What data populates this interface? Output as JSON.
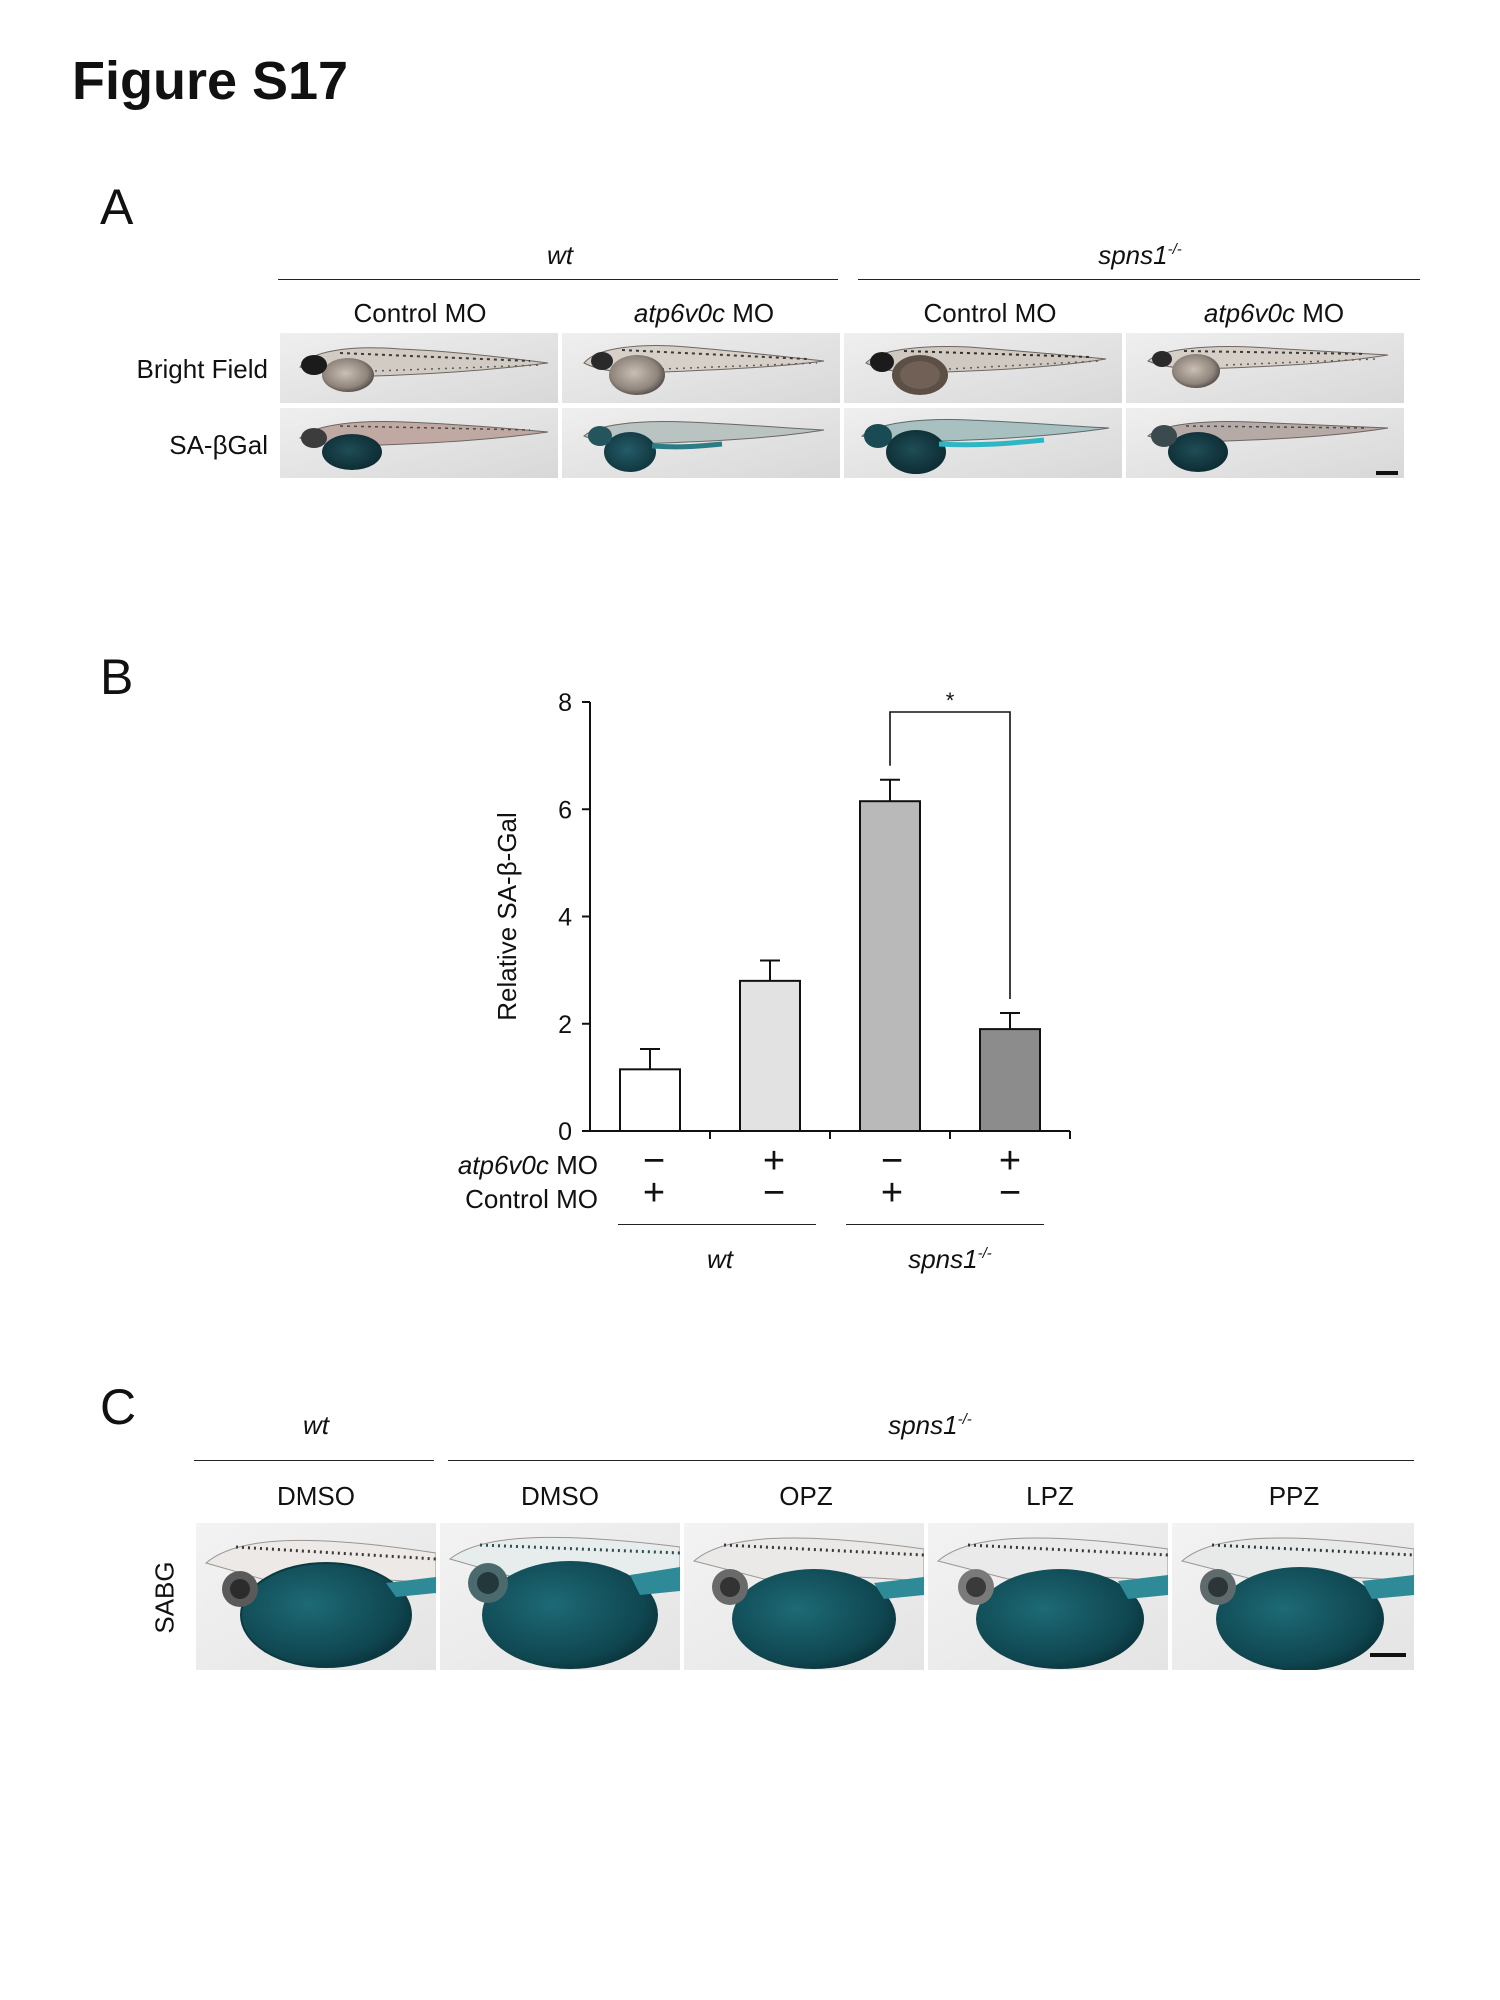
{
  "figure_title": "Figure S17",
  "panel_a": {
    "label": "A",
    "groups": [
      {
        "name": "wt",
        "superscript": ""
      },
      {
        "name": "spns1",
        "superscript": "-/-"
      }
    ],
    "columns": [
      {
        "prefix": "",
        "text": "Control MO"
      },
      {
        "prefix": "atp6v0c",
        "text": " MO"
      },
      {
        "prefix": "",
        "text": "Control MO"
      },
      {
        "prefix": "atp6v0c",
        "text": " MO"
      }
    ],
    "rows": [
      "Bright Field",
      "SA-βGal"
    ]
  },
  "panel_b": {
    "label": "B",
    "ylabel": "Relative SA-β-Gal",
    "significance": "*",
    "row_labels": [
      {
        "prefix": "atp6v0c",
        "text": " MO"
      },
      {
        "prefix": "",
        "text": "Control MO"
      }
    ],
    "atp6v0c_signs": [
      "−",
      "+",
      "−",
      "+"
    ],
    "control_signs": [
      "+",
      "−",
      "+",
      "−"
    ],
    "groups": [
      {
        "name": "wt",
        "superscript": ""
      },
      {
        "name": "spns1",
        "superscript": "-/-"
      }
    ]
  },
  "chart_data": {
    "type": "bar",
    "categories": [
      "wt Control MO",
      "wt atp6v0c MO",
      "spns1-/- Control MO",
      "spns1-/- atp6v0c MO"
    ],
    "values": [
      1.15,
      2.8,
      6.15,
      1.9
    ],
    "errors": [
      0.38,
      0.38,
      0.4,
      0.3
    ],
    "colors": [
      "#ffffff",
      "#e2e2e2",
      "#b9b9b9",
      "#8c8c8c"
    ],
    "ylabel": "Relative SA-β-Gal",
    "ylim": [
      0,
      8
    ],
    "yticks": [
      0,
      2,
      4,
      6,
      8
    ],
    "xlabel": "",
    "title": "",
    "significance": {
      "between": [
        2,
        3
      ],
      "label": "*"
    }
  },
  "panel_c": {
    "label": "C",
    "groups": [
      {
        "name": "wt",
        "superscript": ""
      },
      {
        "name": "spns1",
        "superscript": "-/-"
      }
    ],
    "columns": [
      "DMSO",
      "DMSO",
      "OPZ",
      "LPZ",
      "PPZ"
    ],
    "row_label": "SABG"
  }
}
